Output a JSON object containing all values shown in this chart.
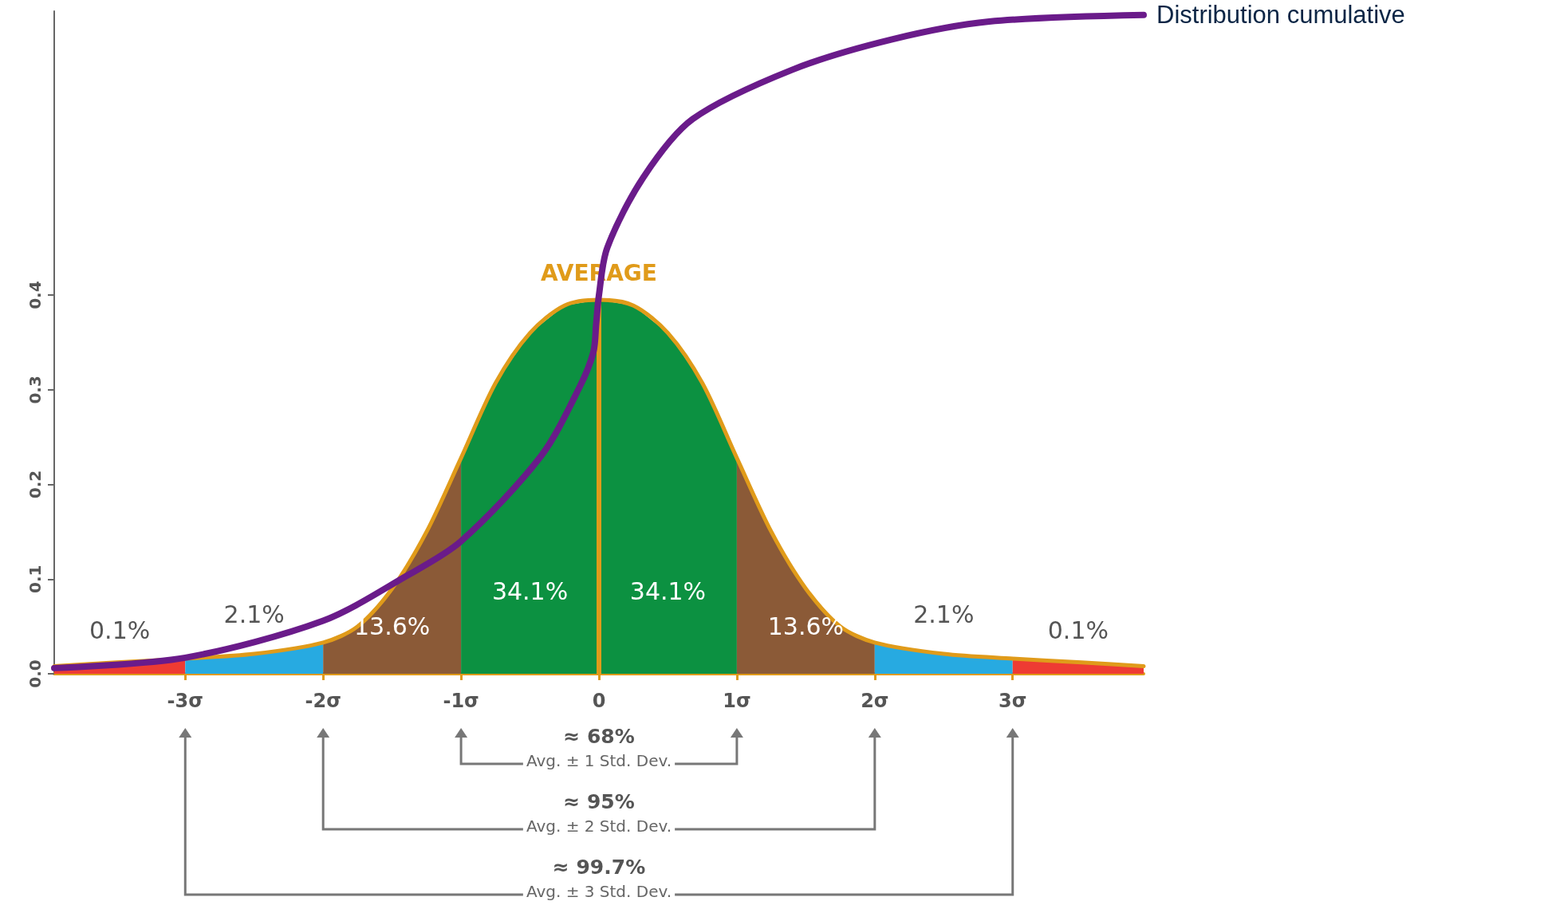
{
  "chart_data": {
    "type": "area",
    "xlim": [
      -3.95,
      3.95
    ],
    "ylim": [
      0,
      0.7
    ],
    "marker": "none",
    "grid": false,
    "xticks": [
      {
        "value": -3,
        "label": "-3σ"
      },
      {
        "value": -2,
        "label": "-2σ"
      },
      {
        "value": -1,
        "label": "-1σ"
      },
      0,
      {
        "value": 1,
        "label": "1σ"
      },
      {
        "value": 2,
        "label": "2σ"
      },
      {
        "value": 3,
        "label": "3σ"
      }
    ],
    "yticks": [
      {
        "value": 0,
        "label": "0.0"
      },
      0.1,
      0.2,
      0.3,
      0.4
    ],
    "series": [
      {
        "color": "#ee3b33",
        "x": [
          -3.95,
          -3.5,
          -3
        ],
        "values": [
          0.008,
          0.012,
          0.016
        ]
      },
      {
        "color": "#27aae1",
        "x": [
          -3,
          -2.5,
          -2
        ],
        "values": [
          0.016,
          0.021,
          0.033
        ]
      },
      {
        "color": "#8b5a37",
        "x": [
          -2,
          -1.75,
          -1.5,
          -1.25,
          -1
        ],
        "values": [
          0.033,
          0.05,
          0.09,
          0.15,
          0.228
        ]
      },
      {
        "color": "#0c9141",
        "x": [
          -1,
          -0.75,
          -0.5,
          -0.25,
          0
        ],
        "values": [
          0.228,
          0.307,
          0.36,
          0.389,
          0.395
        ]
      },
      {
        "color": "#0c9141",
        "x": [
          0,
          0.25,
          0.5,
          0.75,
          1
        ],
        "values": [
          0.395,
          0.389,
          0.36,
          0.307,
          0.228
        ]
      },
      {
        "color": "#8b5a37",
        "x": [
          1,
          1.25,
          1.5,
          1.75,
          2
        ],
        "values": [
          0.228,
          0.15,
          0.09,
          0.05,
          0.033
        ]
      },
      {
        "color": "#27aae1",
        "x": [
          2,
          2.5,
          3
        ],
        "values": [
          0.033,
          0.021,
          0.016
        ]
      },
      {
        "color": "#ee3b33",
        "x": [
          3,
          3.5,
          3.95
        ],
        "values": [
          0.016,
          0.012,
          0.008
        ]
      },
      {
        "type": "line",
        "color": "#e09b1a",
        "x": [
          -3.95,
          -3.5,
          -3,
          -2.5,
          -2,
          -1.75,
          -1.5,
          -1.25,
          -1,
          -0.75,
          -0.5,
          -0.25,
          0,
          0.25,
          0.5,
          0.75,
          1,
          1.25,
          1.5,
          1.75,
          2,
          2.5,
          3,
          3.5,
          3.95
        ],
        "values": [
          0.008,
          0.012,
          0.016,
          0.021,
          0.033,
          0.05,
          0.09,
          0.15,
          0.228,
          0.307,
          0.36,
          0.389,
          0.395,
          0.389,
          0.36,
          0.307,
          0.228,
          0.15,
          0.09,
          0.05,
          0.033,
          0.021,
          0.016,
          0.012,
          0.008
        ]
      },
      {
        "type": "line",
        "name": "Distribution cumulative",
        "color": "#6a1b8a",
        "x": [
          -3.95,
          -3,
          -2,
          -1.4,
          -1,
          -0.42,
          -0.14,
          -0.04,
          -0.02,
          0,
          0.06,
          0.32,
          0.68,
          1.4,
          2.12,
          2.83,
          3.95
        ],
        "values": [
          0.006,
          0.017,
          0.056,
          0.103,
          0.14,
          0.23,
          0.303,
          0.34,
          0.37,
          0.4,
          0.45,
          0.524,
          0.586,
          0.638,
          0.67,
          0.689,
          0.696
        ]
      }
    ],
    "ref_lines": [
      {
        "axis": "x",
        "value": 0,
        "label": "AVERAGE",
        "color": "#e09b1a"
      }
    ],
    "annotations": [
      "0.1%",
      "2.1%",
      "13.6%",
      "34.1%",
      "34.1%",
      "13.6%",
      "2.1%",
      "0.1%",
      "≈ 68%",
      "Avg. ± 1 Std. Dev.",
      "≈ 95%",
      "Avg. ± 2 Std. Dev.",
      "≈ 99.7%",
      "Avg. ± 3 Std. Dev."
    ]
  }
}
